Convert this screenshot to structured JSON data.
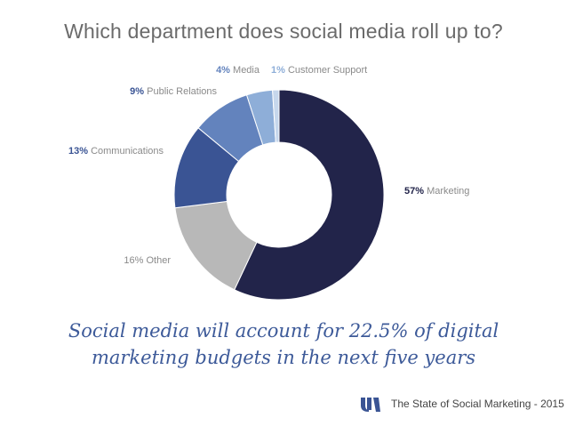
{
  "header": {
    "title": "Which department does social media roll up to?"
  },
  "chart_data": {
    "type": "pie",
    "variant": "donut",
    "categories": [
      "Marketing",
      "Other",
      "Communications",
      "Public Relations",
      "Media",
      "Customer Support"
    ],
    "values": [
      57,
      16,
      13,
      9,
      4,
      1
    ],
    "value_labels": [
      "57%",
      "16%",
      "13%",
      "9%",
      "4%",
      "1%"
    ],
    "colors": [
      "#22244a",
      "#b8b8b8",
      "#3a5494",
      "#6383bd",
      "#8eaed8",
      "#c6d7ec"
    ],
    "legend": "inline labels"
  },
  "tagline": {
    "line1": "Social media will account for 22.5% of digital",
    "line2": "marketing budgets in the next five years"
  },
  "footer": {
    "logo_icon": "brand-logo-icon",
    "text": "The State of Social Marketing - 2015"
  }
}
